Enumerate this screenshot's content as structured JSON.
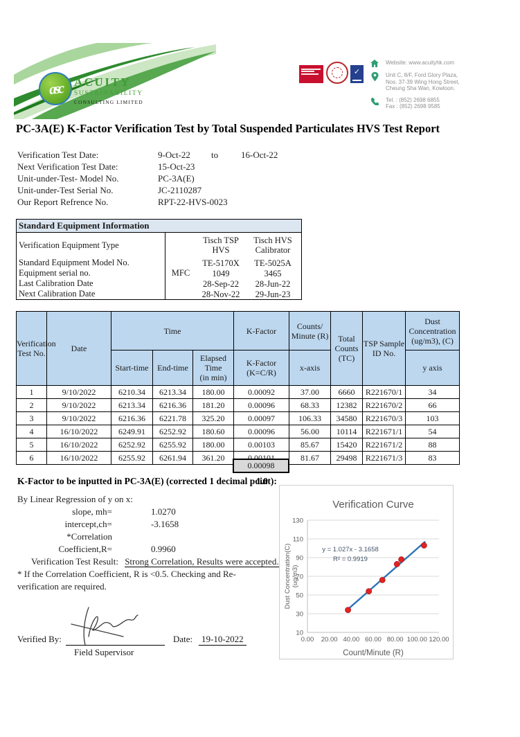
{
  "brand": {
    "monogram": "asc",
    "name": "ACUITY",
    "tagline": "SUSTAINABILITY",
    "subtitle": "CONSULTING LIMITED"
  },
  "contact": {
    "website": "Website: www.acuityhk.com",
    "address": "Unit C, 8/F, Ford Glory Plaza,\nNos. 37-39 Wing Hong Street,\nCheung Sha Wan, Kowloon.",
    "tel_fax": "Tel. : (852) 2698 6855\nFax : (852) 2698 9585"
  },
  "report": {
    "title": "PC-3A(E)  K-Factor Verification Test by Total Suspended Particulates HVS Test Report",
    "info": [
      {
        "label": "Verification Test Date:",
        "value": "9-Oct-22",
        "to": "to",
        "value2": "16-Oct-22"
      },
      {
        "label": "Next Verification Test Date:",
        "value": "15-Oct-23"
      },
      {
        "label": "Unit-under-Test- Model No.",
        "value": "PC-3A(E)"
      },
      {
        "label": "Unit-under-Test Serial No.",
        "value": "JC-2110287"
      },
      {
        "label": "Our Report Refrence No.",
        "value": "RPT-22-HVS-0023"
      }
    ]
  },
  "equipment_table": {
    "header": "Standard Equipment Information",
    "rows": [
      {
        "label": "Verification Equipment Type",
        "mfc": "",
        "col1": "Tisch TSP\nHVS",
        "col2": "Tisch HVS\nCalibrator"
      },
      {
        "label": "Standard Equipment Model No.",
        "mfc": "",
        "col1": "TE-5170X",
        "col2": "TE-5025A"
      },
      {
        "label": "Equipment serial no.",
        "mfc": "MFC",
        "col1": "1049",
        "col2": "3465"
      },
      {
        "label": "Last Calibration Date",
        "mfc": "",
        "col1": "28-Sep-22",
        "col2": "28-Jun-22"
      },
      {
        "label": "Next Calibration Date",
        "mfc": "",
        "col1": "28-Nov-22",
        "col2": "29-Jun-23"
      }
    ]
  },
  "main_table": {
    "headers": {
      "verification_test_no": "Verification\nTest No.",
      "date": "Date",
      "time": "Time",
      "start_time": "Start-time",
      "end_time": "End-time",
      "elapsed_time": "Elapsed\nTime\n(in min)",
      "k_factor": "K-Factor",
      "k_factor_sub": "K-Factor\n(K=C/R)",
      "counts_minute": "Counts/\nMinute (R)",
      "x_axis": "x-axis",
      "total_counts": "Total\nCounts\n(TC)",
      "tsp_sample": "TSP Sample\nID No.",
      "dust_concentration": "Dust\nConcentration\n(ug/m3), (C)",
      "y_axis": "y axis"
    },
    "rows": [
      [
        "1",
        "9/10/2022",
        "6210.34",
        "6213.34",
        "180.00",
        "0.00092",
        "37.00",
        "6660",
        "R221670/1",
        "34"
      ],
      [
        "2",
        "9/10/2022",
        "6213.34",
        "6216.36",
        "181.20",
        "0.00096",
        "68.33",
        "12382",
        "R221670/2",
        "66"
      ],
      [
        "3",
        "9/10/2022",
        "6216.36",
        "6221.78",
        "325.20",
        "0.00097",
        "106.33",
        "34580",
        "R221670/3",
        "103"
      ],
      [
        "4",
        "16/10/2022",
        "6249.91",
        "6252.92",
        "180.60",
        "0.00096",
        "56.00",
        "10114",
        "R221671/1",
        "54"
      ],
      [
        "5",
        "16/10/2022",
        "6252.92",
        "6255.92",
        "180.00",
        "0.00103",
        "85.67",
        "15420",
        "R221671/2",
        "88"
      ],
      [
        "6",
        "16/10/2022",
        "6255.92",
        "6261.94",
        "361.20",
        "0.00101",
        "81.67",
        "29498",
        "R221671/3",
        "83"
      ]
    ],
    "average": "0.00098"
  },
  "k_factor_line": {
    "label": "K-Factor to be inputted in PC-3A(E) (corrected 1 decimal point):",
    "value": "1.0"
  },
  "regression": {
    "heading": "By Linear Regression of y on x:",
    "rows": [
      {
        "label": "slope, mh=",
        "value": "1.0270"
      },
      {
        "label": "intercept,ch=",
        "value": "-3.1658"
      },
      {
        "label": "*Correlation Coefficient,R=",
        "value": "0.9960"
      }
    ],
    "result_label": "Verification Test Result:",
    "result_value": "Strong Correlation, Results were accepted.",
    "note": "* If the Correlation Coefficient, R is <0.5. Checking and Re-\nverification are required."
  },
  "chart_data": {
    "type": "scatter",
    "title": "Verification Curve",
    "xlabel": "Count/Minute (R)",
    "ylabel_line1": "Dust Concentration(C)",
    "ylabel_line2": "(ug/m3)",
    "xlim": [
      0,
      120
    ],
    "ylim": [
      10,
      130
    ],
    "x_ticks": [
      "0.00",
      "20.00",
      "40.00",
      "60.00",
      "80.00",
      "100.00",
      "120.00"
    ],
    "y_ticks": [
      130,
      110,
      90,
      70,
      50,
      30,
      10
    ],
    "points": [
      [
        37.0,
        34
      ],
      [
        56.0,
        54
      ],
      [
        68.33,
        66
      ],
      [
        81.67,
        83
      ],
      [
        85.67,
        88
      ],
      [
        106.33,
        103
      ]
    ],
    "trendline": {
      "slope": 1.027,
      "intercept": -3.1658,
      "x_start": 36.5,
      "x_end": 107.5
    },
    "annotation": [
      "y = 1.027x - 3.1658",
      "R² = 0.9919"
    ],
    "line_color": "#2E75B6",
    "point_color": "#E32222",
    "point_edge_color": "#A61C1C",
    "grid": "horizontal",
    "legend": "none"
  },
  "footer": {
    "verified_by_label": "Verified By:",
    "role": "Field Supervisor",
    "date_label": "Date:",
    "date_value": "19-10-2022"
  },
  "colors": {
    "brand_green": "#3F9C35",
    "table_header_blue": "#BDD7EE",
    "equipment_header_blue": "#DCE6F1",
    "average_cell_gray": "#D9D9D9",
    "contact_icon_teal": "#2E9E73",
    "cert_red": "#C8102E",
    "cert_blue": "#24408E"
  }
}
